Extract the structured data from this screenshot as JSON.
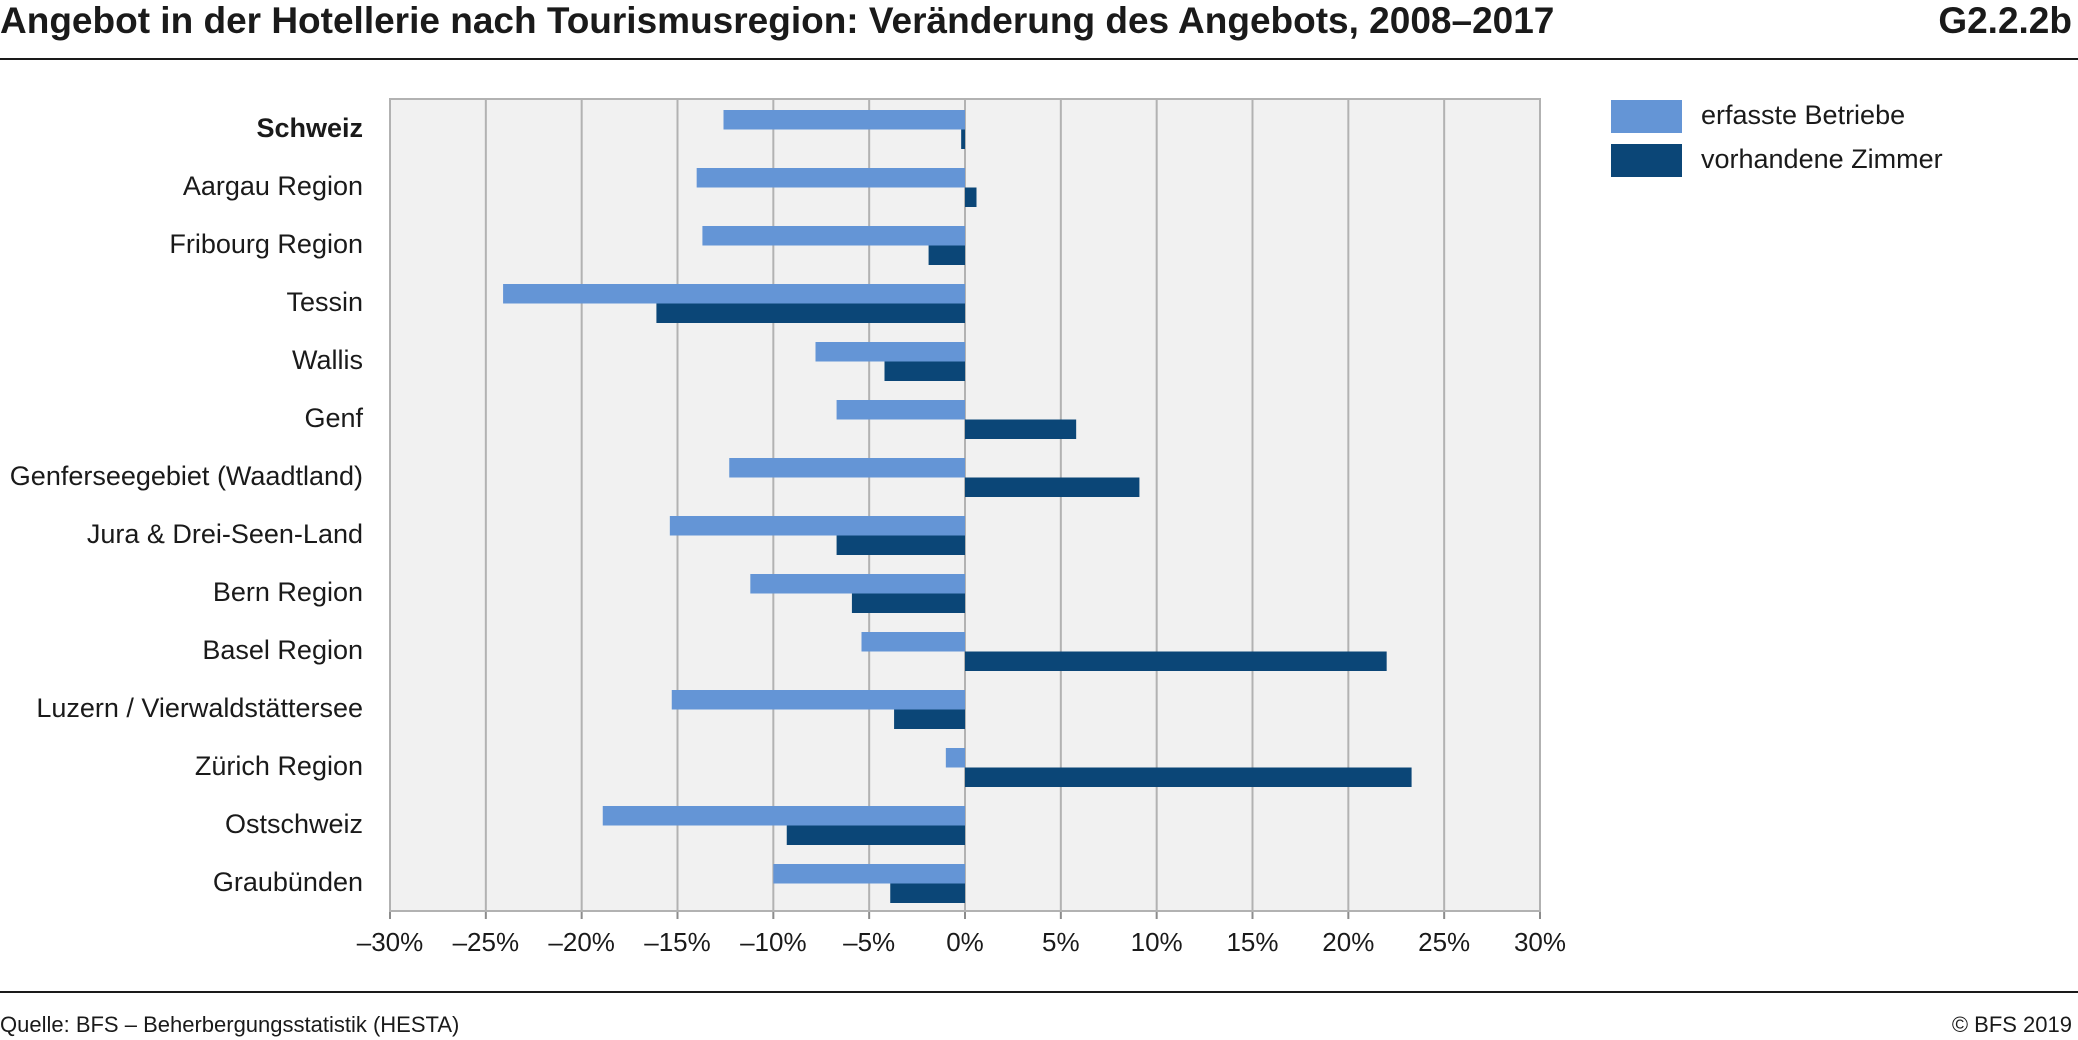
{
  "header": {
    "title": "Angebot in der Hotellerie nach Tourismusregion: Veränderung des Angebots, 2008–2017",
    "code": "G2.2.2b"
  },
  "footer": {
    "source": "Quelle: BFS – Beherbergungsstatistik (HESTA)",
    "copyright": "© BFS 2019"
  },
  "colors": {
    "erfasste_betriebe": "#6495d6",
    "vorhandene_zimmer": "#0b4677",
    "plot_background": "#f1f1f1",
    "gridline": "#b2b2b2"
  },
  "chart_data": {
    "type": "bar",
    "orientation": "horizontal",
    "categories": [
      "Schweiz",
      "Aargau Region",
      "Fribourg Region",
      "Tessin",
      "Wallis",
      "Genf",
      "Genferseegebiet (Waadtland)",
      "Jura & Drei-Seen-Land",
      "Bern Region",
      "Basel Region",
      "Luzern / Vierwaldstättersee",
      "Zürich Region",
      "Ostschweiz",
      "Graubünden"
    ],
    "bold_categories": [
      "Schweiz"
    ],
    "series": [
      {
        "name": "erfasste Betriebe",
        "color": "#6495d6",
        "values": [
          -12.6,
          -14.0,
          -13.7,
          -24.1,
          -7.8,
          -6.7,
          -12.3,
          -15.4,
          -11.2,
          -5.4,
          -15.3,
          -1.0,
          -18.9,
          -10.0
        ]
      },
      {
        "name": "vorhandene Zimmer",
        "color": "#0b4677",
        "values": [
          -0.2,
          0.6,
          -1.9,
          -16.1,
          -4.2,
          5.8,
          9.1,
          -6.7,
          -5.9,
          22.0,
          -3.7,
          23.3,
          -9.3,
          -3.9
        ]
      }
    ],
    "xlim": [
      -30,
      30
    ],
    "x_ticks": [
      -30,
      -25,
      -20,
      -15,
      -10,
      -5,
      0,
      5,
      10,
      15,
      20,
      25,
      30
    ],
    "x_tick_labels": [
      "–30%",
      "–25%",
      "–20%",
      "–15%",
      "–10%",
      "–5%",
      "0%",
      "5%",
      "10%",
      "15%",
      "20%",
      "25%",
      "30%"
    ],
    "grid": true,
    "legend_position": "top-right, outside plot"
  }
}
